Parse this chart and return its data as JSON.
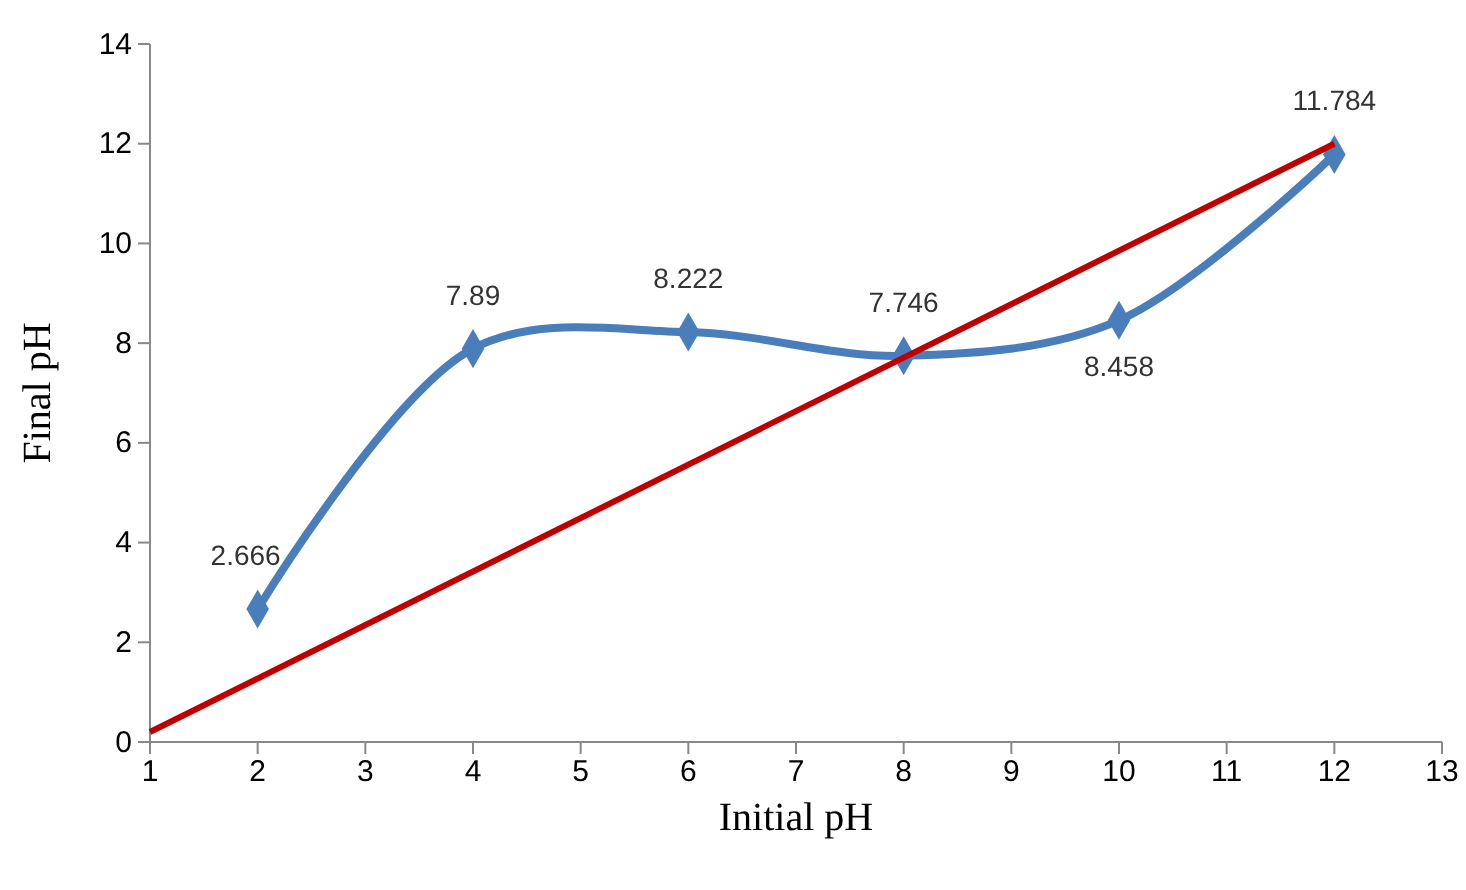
{
  "chart_data": {
    "type": "line",
    "xlabel": "Initial pH",
    "ylabel": "Final pH",
    "xlim": [
      1,
      13
    ],
    "xticks": [
      1,
      2,
      3,
      4,
      5,
      6,
      7,
      8,
      9,
      10,
      11,
      12,
      13
    ],
    "ylim": [
      0,
      14
    ],
    "yticks": [
      0,
      2,
      4,
      6,
      8,
      10,
      12,
      14
    ],
    "grid": false,
    "marker": "diamond",
    "series": [
      {
        "color": "#4a7ebb",
        "x": [
          2,
          4,
          6,
          8,
          10,
          12
        ],
        "values": [
          2.666,
          7.89,
          8.222,
          7.746,
          8.458,
          11.784
        ],
        "value_labels": [
          "2.666",
          "7.89",
          "8.222",
          "7.746",
          "8.458",
          "11.784"
        ]
      },
      {
        "color": "#c00000",
        "x": [
          1,
          12
        ],
        "values": [
          0.2,
          12
        ],
        "marker": "none"
      }
    ]
  }
}
